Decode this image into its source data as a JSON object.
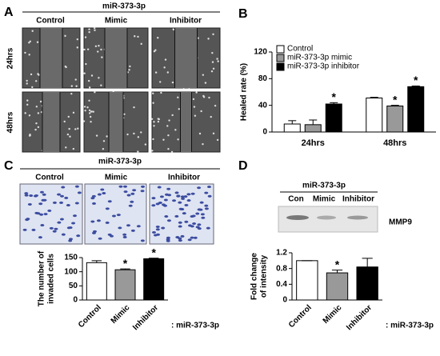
{
  "panel_labels": [
    "A",
    "B",
    "C",
    "D"
  ],
  "panel_a": {
    "title": "miR-373-3p",
    "columns": [
      "Control",
      "Mimic",
      "Inhibitor"
    ],
    "rows": [
      "24hrs",
      "48hrs"
    ]
  },
  "panel_c_images": {
    "title": "miR-373-3p",
    "columns": [
      "Control",
      "Mimic",
      "Inhibitor"
    ]
  },
  "panel_d_blot": {
    "title": "miR-373-3p",
    "lanes": [
      "Con",
      "Mimic",
      "Inhibitor"
    ],
    "band": "MMP9"
  },
  "chart_data": [
    {
      "type": "grouped-bar",
      "ylabel": [
        "Healed rate (%)"
      ],
      "categories": [
        "24hrs",
        "48hrs"
      ],
      "ylim": [
        0,
        120
      ],
      "yticks": [
        0,
        40,
        80,
        120
      ],
      "series": [
        {
          "name": "Control",
          "color": "#ffffff",
          "values": [
            12,
            51
          ],
          "errors": [
            5,
            1
          ],
          "significance": [
            null,
            null
          ]
        },
        {
          "name": "miR-373-3p mimic",
          "color": "#999999",
          "values": [
            11,
            39
          ],
          "errors": [
            7,
            1
          ],
          "significance": [
            null,
            "*"
          ]
        },
        {
          "name": "miR-373-3p inhibitor",
          "color": "#000000",
          "values": [
            42,
            68
          ],
          "errors": [
            2,
            1
          ],
          "significance": [
            "*",
            "*"
          ]
        }
      ]
    },
    {
      "type": "bar",
      "ylabel": [
        "The number of",
        "invaded cells"
      ],
      "categories": [
        "Control",
        "Mimic",
        "Inhibitor"
      ],
      "colors": [
        "#ffffff",
        "#999999",
        "#000000"
      ],
      "values": [
        132,
        107,
        146
      ],
      "errors": [
        7,
        3,
        2
      ],
      "significance": [
        null,
        "*",
        "*"
      ],
      "ylim": [
        0,
        150
      ],
      "yticks": [
        0,
        50,
        100,
        150
      ],
      "x_suffix": ": miR-373-3p"
    },
    {
      "type": "bar",
      "ylabel": [
        "Fold change",
        "of intensity"
      ],
      "categories": [
        "Control",
        "Mimic",
        "Inhibitor"
      ],
      "colors": [
        "#ffffff",
        "#999999",
        "#000000"
      ],
      "values": [
        1.0,
        0.69,
        0.84
      ],
      "errors": [
        0,
        0.07,
        0.22
      ],
      "significance": [
        null,
        "*",
        null
      ],
      "ylim": [
        0,
        1.2
      ],
      "yticks": [
        0,
        0.4,
        0.8,
        1.2
      ],
      "x_suffix": ": miR-373-3p"
    }
  ]
}
